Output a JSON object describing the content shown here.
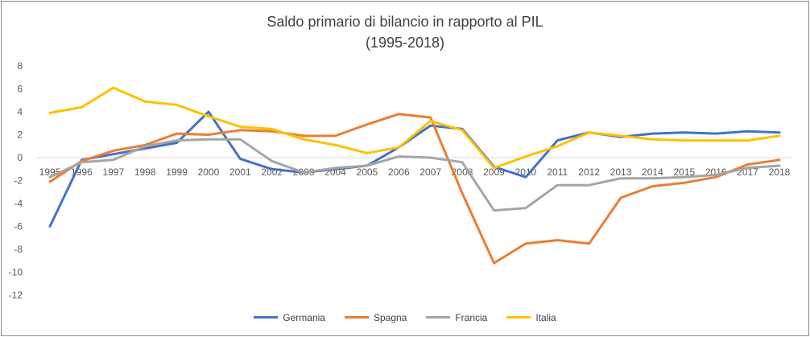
{
  "chart_data": {
    "type": "line",
    "title": "Saldo primario di bilancio in rapporto al PIL",
    "subtitle": "(1995-2018)",
    "xlabel": "",
    "ylabel": "",
    "ylim": [
      -12,
      8
    ],
    "yticks": [
      8,
      6,
      4,
      2,
      0,
      -2,
      -4,
      -6,
      -8,
      -10,
      -12
    ],
    "grid": false,
    "legend_position": "bottom",
    "x": [
      "1995",
      "1996",
      "1997",
      "1998",
      "1999",
      "2000",
      "2001",
      "2002",
      "2003",
      "2004",
      "2005",
      "2006",
      "2007",
      "2008",
      "2009",
      "2010",
      "2011",
      "2012",
      "2013",
      "2014",
      "2015",
      "2016",
      "2017",
      "2018"
    ],
    "series": [
      {
        "name": "Germania",
        "color": "#4472c4",
        "values": [
          -6.0,
          -0.2,
          0.3,
          0.8,
          1.3,
          4.0,
          -0.1,
          -1.0,
          -1.3,
          -1.0,
          -0.7,
          0.9,
          2.8,
          2.5,
          -0.8,
          -1.7,
          1.5,
          2.2,
          1.8,
          2.1,
          2.2,
          2.1,
          2.3,
          2.2
        ]
      },
      {
        "name": "Spagna",
        "color": "#ed7d31",
        "values": [
          -2.1,
          -0.3,
          0.6,
          1.1,
          2.1,
          2.0,
          2.4,
          2.3,
          1.9,
          1.9,
          2.9,
          3.8,
          3.5,
          -3.1,
          -9.2,
          -7.5,
          -7.2,
          -7.5,
          -3.5,
          -2.5,
          -2.2,
          -1.7,
          -0.6,
          -0.2
        ]
      },
      {
        "name": "Francia",
        "color": "#a5a5a5",
        "values": [
          -1.7,
          -0.4,
          -0.2,
          1.0,
          1.5,
          1.6,
          1.6,
          -0.3,
          -1.3,
          -0.9,
          -0.7,
          0.1,
          0.0,
          -0.4,
          -4.6,
          -4.4,
          -2.4,
          -2.4,
          -1.8,
          -1.8,
          -1.7,
          -1.5,
          -0.9,
          -0.7
        ]
      },
      {
        "name": "Italia",
        "color": "#ffc000",
        "values": [
          3.9,
          4.4,
          6.1,
          4.9,
          4.6,
          3.6,
          2.7,
          2.5,
          1.6,
          1.1,
          0.4,
          0.9,
          3.2,
          2.4,
          -0.9,
          0.1,
          1.0,
          2.2,
          1.9,
          1.6,
          1.5,
          1.5,
          1.5,
          1.9
        ]
      }
    ]
  }
}
